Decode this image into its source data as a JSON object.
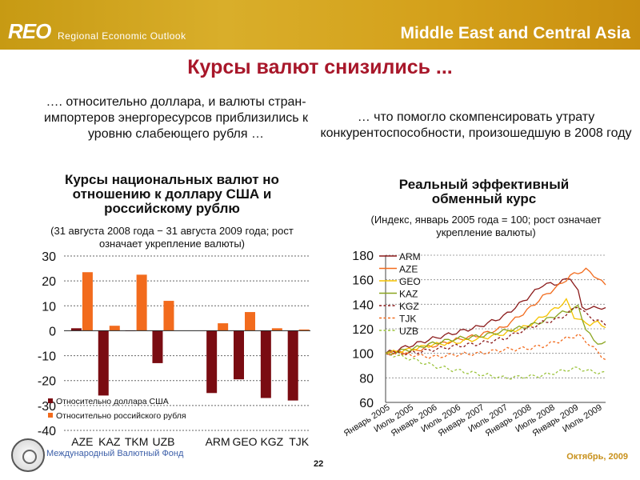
{
  "header": {
    "logo": "REO",
    "logo_sub": "Regional Economic Outlook",
    "region": "Middle East and Central Asia"
  },
  "slide": {
    "title": "Курсы валют снизились ...",
    "left_subtitle": "…. относительно доллара, и валюты стран-импортеров энергоресурсов приблизились к уровню слабеющего рубля …",
    "right_subtitle": "… что помогло скомпенсировать утрату конкурентоспособности, произошедшую в 2008 году"
  },
  "footer": {
    "org": "Международный Валютный Фонд",
    "page": "22",
    "date": "Октябрь, 2009"
  },
  "colors": {
    "accent": "#a8172a",
    "banner": "#d4a01a",
    "usd": "#7a0c12",
    "rub": "#f26b1d"
  },
  "chart_data": [
    {
      "type": "bar",
      "title": "Курсы национальных валют но отношению к доллару США и российскому рублю",
      "subtitle": "(31 августа 2008 года − 31 августа 2009 года; рост означает укрепление валюты)",
      "categories": [
        "AZE",
        "KAZ",
        "TKM",
        "UZB",
        "ARM",
        "GEO",
        "KGZ",
        "TJK"
      ],
      "series": [
        {
          "name": "Относительно доллара США",
          "color": "#7a0c12",
          "values": [
            1,
            -26,
            0,
            -13,
            -25,
            -19.5,
            -27,
            -28
          ]
        },
        {
          "name": "Относительно российского рубля",
          "color": "#f26b1d",
          "values": [
            23.5,
            2,
            22.5,
            12,
            3,
            7.5,
            1,
            0.5
          ]
        }
      ],
      "ylim": [
        -40,
        30
      ],
      "yticks": [
        30,
        20,
        10,
        0,
        -10,
        -20,
        -30,
        -40
      ],
      "xlabel": "",
      "ylabel": "",
      "legend": "bottom-left",
      "grid": true
    },
    {
      "type": "line",
      "title": "Реальный эффективный обменный курс",
      "subtitle": "(Индекс, январь 2005 года = 100; рост означает укрепление валюты)",
      "x": [
        "Январь 2005",
        "Июль 2005",
        "Январь 2006",
        "Июль 2006",
        "Январь 2007",
        "Июль 2007",
        "Январь 2008",
        "Июль 2008",
        "Январь 2009",
        "Июль 2009"
      ],
      "x_count": 57,
      "ylim": [
        60,
        180
      ],
      "yticks": [
        180,
        160,
        140,
        120,
        100,
        80,
        60
      ],
      "legend": "top-left",
      "grid": true,
      "series": [
        {
          "name": "ARM",
          "color": "#8b1a1a",
          "dash": "solid",
          "knots": [
            [
              0,
              100
            ],
            [
              6,
              106
            ],
            [
              12,
              112
            ],
            [
              18,
              117
            ],
            [
              24,
              122
            ],
            [
              30,
              130
            ],
            [
              36,
              145
            ],
            [
              40,
              156
            ],
            [
              44,
              157
            ],
            [
              47,
              162
            ],
            [
              49,
              150
            ],
            [
              50,
              138
            ],
            [
              52,
              136
            ],
            [
              54,
              138
            ],
            [
              56,
              136
            ]
          ]
        },
        {
          "name": "AZE",
          "color": "#f26b1d",
          "dash": "solid",
          "knots": [
            [
              0,
              100
            ],
            [
              6,
              101
            ],
            [
              12,
              106
            ],
            [
              18,
              111
            ],
            [
              24,
              115
            ],
            [
              30,
              121
            ],
            [
              36,
              135
            ],
            [
              40,
              146
            ],
            [
              44,
              155
            ],
            [
              47,
              163
            ],
            [
              49,
              166
            ],
            [
              51,
              168
            ],
            [
              53,
              164
            ],
            [
              55,
              158
            ],
            [
              56,
              156
            ]
          ]
        },
        {
          "name": "GEO",
          "color": "#f5c300",
          "dash": "solid",
          "knots": [
            [
              0,
              100
            ],
            [
              6,
              103
            ],
            [
              12,
              107
            ],
            [
              18,
              109
            ],
            [
              24,
              112
            ],
            [
              30,
              116
            ],
            [
              36,
              122
            ],
            [
              40,
              130
            ],
            [
              44,
              138
            ],
            [
              46,
              143
            ],
            [
              48,
              130
            ],
            [
              50,
              126
            ],
            [
              52,
              124
            ],
            [
              54,
              125
            ],
            [
              56,
              122
            ]
          ]
        },
        {
          "name": "KAZ",
          "color": "#8aa51f",
          "dash": "solid",
          "knots": [
            [
              0,
              100
            ],
            [
              6,
              103
            ],
            [
              12,
              108
            ],
            [
              18,
              112
            ],
            [
              24,
              114
            ],
            [
              30,
              118
            ],
            [
              36,
              122
            ],
            [
              40,
              126
            ],
            [
              44,
              132
            ],
            [
              47,
              135
            ],
            [
              49,
              138
            ],
            [
              51,
              120
            ],
            [
              53,
              110
            ],
            [
              55,
              108
            ],
            [
              56,
              108
            ]
          ]
        },
        {
          "name": "KGZ",
          "color": "#8b1a1a",
          "dash": "dotted",
          "knots": [
            [
              0,
              100
            ],
            [
              6,
              100
            ],
            [
              12,
              103
            ],
            [
              18,
              106
            ],
            [
              24,
              108
            ],
            [
              30,
              112
            ],
            [
              36,
              120
            ],
            [
              40,
              125
            ],
            [
              44,
              128
            ],
            [
              47,
              134
            ],
            [
              49,
              139
            ],
            [
              51,
              132
            ],
            [
              53,
              128
            ],
            [
              55,
              125
            ],
            [
              56,
              124
            ]
          ]
        },
        {
          "name": "TJK",
          "color": "#f26b1d",
          "dash": "dotted",
          "knots": [
            [
              0,
              100
            ],
            [
              6,
              99
            ],
            [
              12,
              97
            ],
            [
              18,
              99
            ],
            [
              24,
              100
            ],
            [
              30,
              103
            ],
            [
              36,
              104
            ],
            [
              40,
              106
            ],
            [
              44,
              110
            ],
            [
              47,
              113
            ],
            [
              49,
              115
            ],
            [
              51,
              110
            ],
            [
              53,
              104
            ],
            [
              55,
              98
            ],
            [
              56,
              95
            ]
          ]
        },
        {
          "name": "UZB",
          "color": "#9bc33a",
          "dash": "dotted",
          "knots": [
            [
              0,
              100
            ],
            [
              6,
              96
            ],
            [
              12,
              90
            ],
            [
              18,
              86
            ],
            [
              24,
              83
            ],
            [
              30,
              80
            ],
            [
              36,
              81
            ],
            [
              40,
              82
            ],
            [
              44,
              85
            ],
            [
              47,
              87
            ],
            [
              49,
              88
            ],
            [
              51,
              86
            ],
            [
              53,
              85
            ],
            [
              55,
              84
            ],
            [
              56,
              84
            ]
          ]
        }
      ]
    }
  ]
}
